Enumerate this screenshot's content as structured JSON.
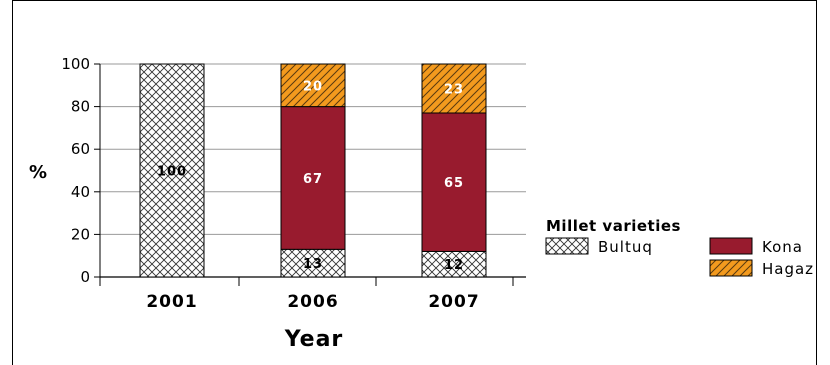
{
  "chart_data": {
    "type": "bar",
    "stacked": true,
    "categories": [
      "2001",
      "2006",
      "2007"
    ],
    "series": [
      {
        "name": "Bultuq",
        "values": [
          100,
          13,
          12
        ],
        "color": "#ffffff",
        "pattern": "crosshatch",
        "label_color": "#000000"
      },
      {
        "name": "Kona",
        "values": [
          0,
          67,
          65
        ],
        "color": "#981b2e",
        "pattern": "solid",
        "label_color": "#ffffff"
      },
      {
        "name": "Hagaz",
        "values": [
          0,
          20,
          23
        ],
        "color": "#f39a1e",
        "pattern": "diagonal",
        "label_color": "#ffffff"
      }
    ],
    "data_labels": [
      [
        "100",
        "",
        ""
      ],
      [
        "13",
        "67",
        "20"
      ],
      [
        "12",
        "65",
        "23"
      ]
    ],
    "title": "",
    "xlabel": "Year",
    "ylabel": "%",
    "ylim": [
      0,
      100
    ],
    "yticks": [
      "0",
      "20",
      "40",
      "60",
      "80",
      "100"
    ],
    "grid": true,
    "legend": {
      "title": "Millet varieties",
      "position": "right"
    }
  }
}
